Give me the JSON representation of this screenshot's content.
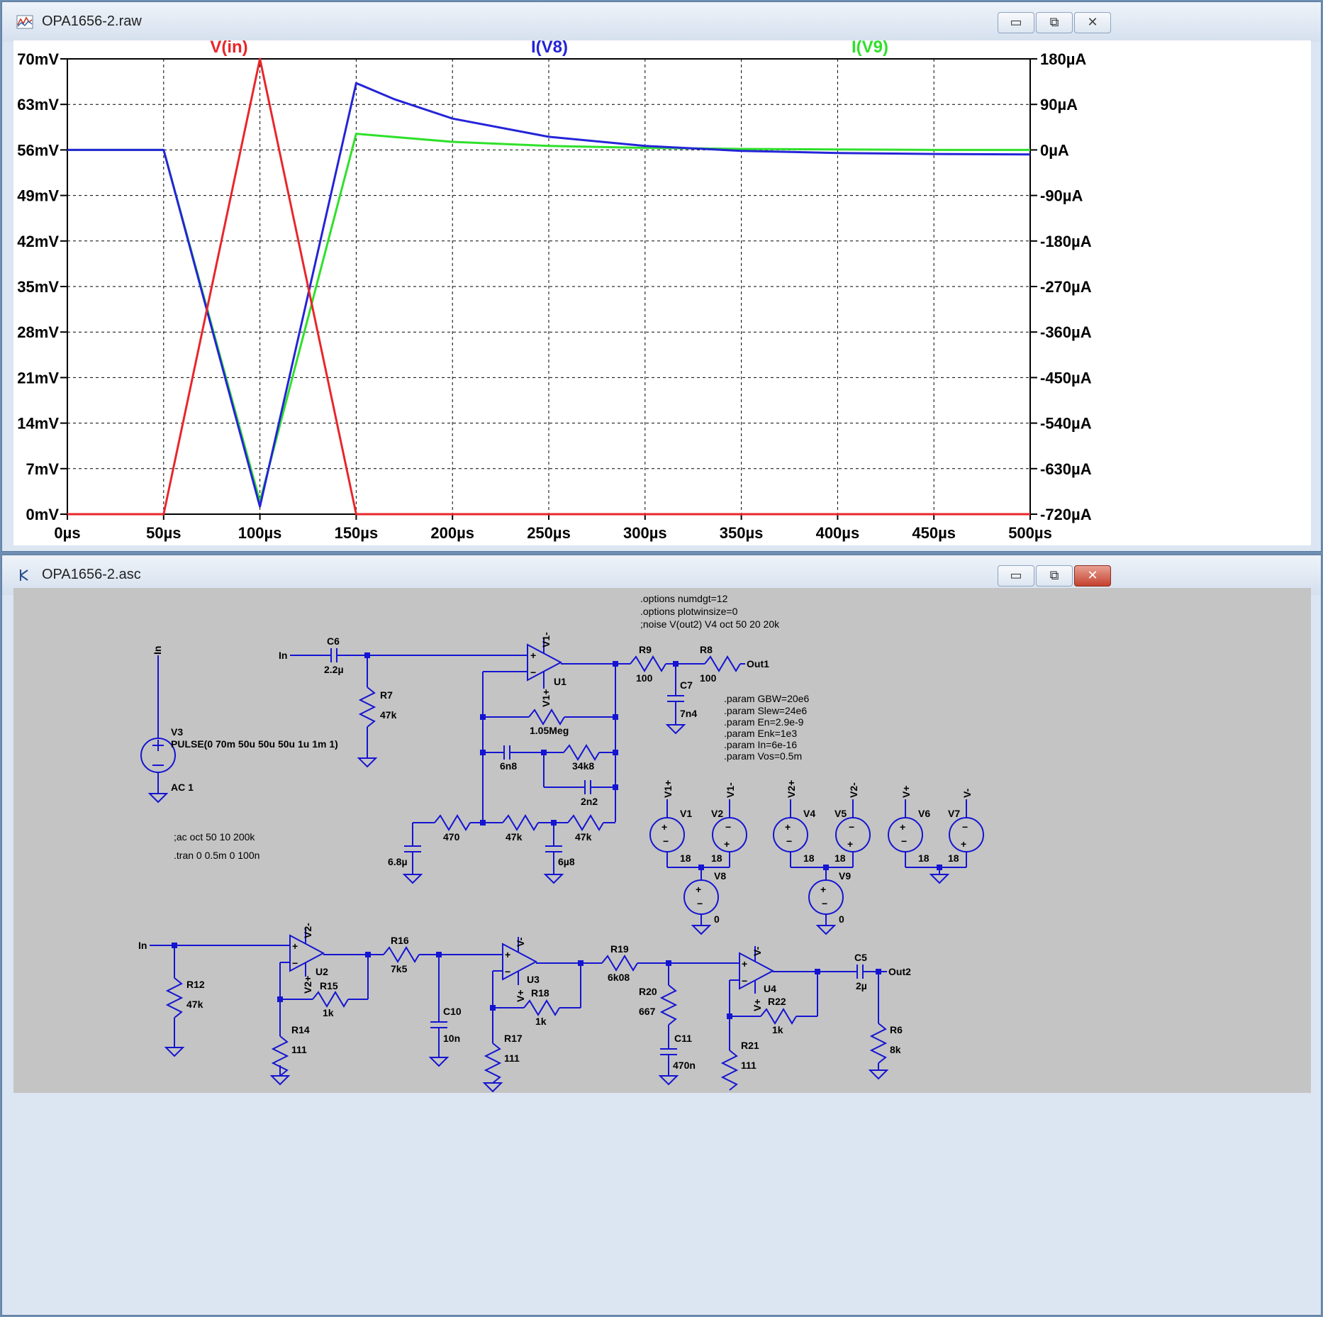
{
  "waveform_window": {
    "title": "OPA1656-2.raw",
    "icon": "waveform-icon",
    "buttons": {
      "minimize": "▭",
      "restore": "⧉",
      "close": "✕"
    }
  },
  "schematic_window": {
    "title": "OPA1656-2.asc",
    "icon": "schematic-icon",
    "buttons": {
      "minimize": "▭",
      "restore": "⧉",
      "close": "✕"
    }
  },
  "chart_data": {
    "type": "line",
    "xlabel": "",
    "x_ticks": [
      "0µs",
      "50µs",
      "100µs",
      "150µs",
      "200µs",
      "250µs",
      "300µs",
      "350µs",
      "400µs",
      "450µs",
      "500µs"
    ],
    "xlim": [
      0,
      500
    ],
    "left_axis": {
      "ylim": [
        0,
        70
      ],
      "ticks": [
        "0mV",
        "7mV",
        "14mV",
        "21mV",
        "28mV",
        "35mV",
        "42mV",
        "49mV",
        "56mV",
        "63mV",
        "70mV"
      ]
    },
    "right_axis": {
      "ylim": [
        -720,
        180
      ],
      "ticks": [
        "-720µA",
        "-630µA",
        "-540µA",
        "-450µA",
        "-360µA",
        "-270µA",
        "-180µA",
        "-90µA",
        "0µA",
        "90µA",
        "180µA"
      ]
    },
    "grid": true,
    "series": [
      {
        "name": "V(in)",
        "axis": "left",
        "color": "#e8262b",
        "x": [
          0,
          50,
          100,
          150,
          500
        ],
        "y": [
          0,
          0,
          70,
          0,
          0
        ]
      },
      {
        "name": "I(V8)",
        "axis": "right",
        "color": "#2424d8",
        "x": [
          0,
          50,
          100,
          150,
          170,
          200,
          250,
          300,
          350,
          400,
          450,
          500
        ],
        "y": [
          0,
          0,
          -705,
          132,
          100,
          62,
          26,
          8,
          -2,
          -6,
          -8,
          -9
        ]
      },
      {
        "name": "I(V9)",
        "axis": "right",
        "color": "#2fe02a",
        "x": [
          0,
          50,
          100,
          150,
          200,
          250,
          300,
          350,
          400,
          450,
          500
        ],
        "y": [
          0,
          0,
          -695,
          32,
          16,
          8,
          4,
          2,
          1,
          0,
          0
        ]
      }
    ]
  },
  "schematic": {
    "directives": [
      ".options numdgt=12",
      ".options plotwinsize=0",
      ";noise V(out2) V4 oct 50 20 20k"
    ],
    "params": [
      ".param GBW=20e6",
      ".param Slew=24e6",
      ".param En=2.9e-9",
      ".param Enk=1e3",
      ".param In=6e-16",
      ".param Vos=0.5m"
    ],
    "sim_commands": [
      ";ac oct 50 10 200k",
      ".tran 0 0.5m 0 100n"
    ],
    "v3": {
      "name": "V3",
      "value": "PULSE(0 70m 50u 50u 50u 1u 1m 1)",
      "ac": "AC 1"
    },
    "labels": {
      "in": "In",
      "out1": "Out1",
      "out2": "Out2",
      "c6": "C6",
      "c6v": "2.2µ",
      "r7": "R7",
      "r7v": "47k",
      "r9": "R9",
      "r9v": "100",
      "r8": "R8",
      "r8v": "100",
      "c7": "C7",
      "c7v": "7n4",
      "u1": "U1",
      "v1m": "V1-",
      "v1p": "V1+",
      "r105": "1.05Meg",
      "c6n8": "6n8",
      "r34k8": "34k8",
      "c2n2": "2n2",
      "r470": "470",
      "r47a": "47k",
      "r47b": "47k",
      "c68": "6.8µ",
      "c6u8": "6µ8",
      "v1": "V1",
      "v2": "V2",
      "v4": "V4",
      "v5": "V5",
      "v6": "V6",
      "v7": "V7",
      "v8": "V8",
      "v9": "V9",
      "v18": "18",
      "v0": "0",
      "n_v1p": "V1+",
      "n_v1m": "V1-",
      "n_v2p": "V2+",
      "n_v2m": "V2-",
      "n_vp": "V+",
      "n_vm": "V-",
      "r12": "R12",
      "r12v": "47k",
      "u2": "U2",
      "v2mlab": "V2-",
      "v2plab": "V2+",
      "r15": "R15",
      "r15v": "1k",
      "r14": "R14",
      "r14v": "111",
      "r16": "R16",
      "r16v": "7k5",
      "c10": "C10",
      "c10v": "10n",
      "u3": "U3",
      "r18": "R18",
      "r18v": "1k",
      "r17": "R17",
      "r17v": "111",
      "r19": "R19",
      "r19v": "6k08",
      "r20": "R20",
      "r20v": "667",
      "c11": "C11",
      "c11v": "470n",
      "u4": "U4",
      "r22": "R22",
      "r22v": "1k",
      "r21": "R21",
      "r21v": "111",
      "c5": "C5",
      "c5v": "2µ",
      "r6": "R6",
      "r6v": "8k",
      "vm": "V-",
      "vp": "V+"
    }
  }
}
